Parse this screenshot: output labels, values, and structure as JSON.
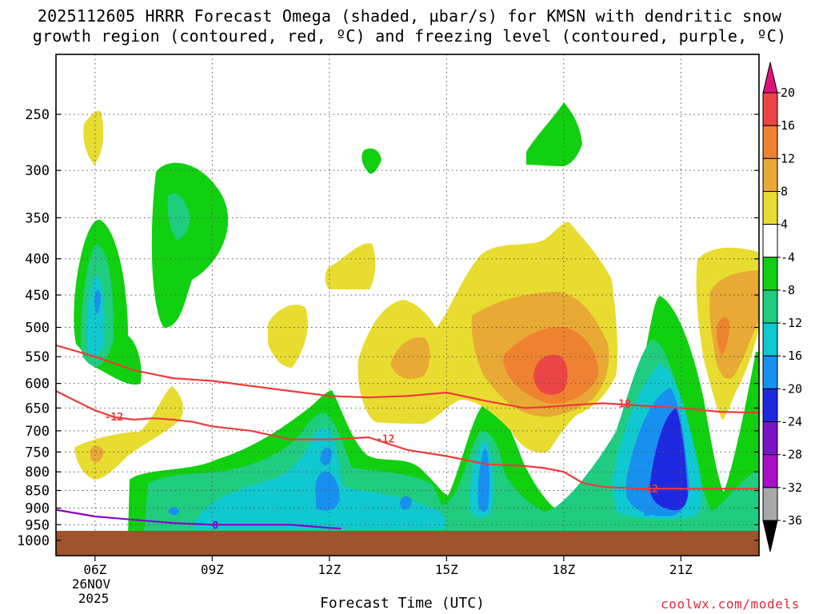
{
  "chart_data": {
    "type": "time-height cross section (shaded omega with contour overlays)",
    "title_line1": "2025112605 HRRR Forecast Omega (shaded, µbar/s) for KMSN with dendritic snow",
    "title_line2": "growth region (contoured, red, ºC) and freezing level (contoured, purple, ºC)",
    "xlabel": "Forecast Time (UTC)",
    "ylabel": "",
    "y_axis": {
      "type": "pressure (mb)",
      "ticks": [
        250,
        300,
        350,
        400,
        450,
        500,
        550,
        600,
        650,
        700,
        750,
        800,
        850,
        900,
        950,
        1000
      ],
      "range": [
        1000,
        195
      ]
    },
    "x_axis": {
      "unit": "hour UTC",
      "range": [
        5.0,
        23.0
      ],
      "ticks": [
        {
          "hour": 6,
          "label": "06Z"
        },
        {
          "hour": 9,
          "label": "09Z"
        },
        {
          "hour": 12,
          "label": "12Z"
        },
        {
          "hour": 15,
          "label": "15Z"
        },
        {
          "hour": 18,
          "label": "18Z"
        },
        {
          "hour": 21,
          "label": "21Z"
        }
      ]
    },
    "date_label_line1": "26NOV",
    "date_label_line2": "2025",
    "surface_pressure_mb": 970,
    "colorbar": {
      "labels": [
        "20",
        "16",
        "12",
        "8",
        "4",
        "-4",
        "-8",
        "-12",
        "-16",
        "-20",
        "-24",
        "-28",
        "-32",
        "-36"
      ],
      "bins": [
        {
          "range": ">20",
          "color": "#e0107a"
        },
        {
          "range": "16 to 20",
          "color": "#ec4545"
        },
        {
          "range": "12 to 16",
          "color": "#ee8230"
        },
        {
          "range": "8 to 12",
          "color": "#e8aa35"
        },
        {
          "range": "4 to 8",
          "color": "#e8dc30"
        },
        {
          "range": "-4 to 4",
          "color": "#ffffff"
        },
        {
          "range": "-8 to -4",
          "color": "#10d010"
        },
        {
          "range": "-12 to -8",
          "color": "#20cc80"
        },
        {
          "range": "-16 to -12",
          "color": "#10c8d0"
        },
        {
          "range": "-20 to -16",
          "color": "#1890f0"
        },
        {
          "range": "-24 to -20",
          "color": "#1e28e0"
        },
        {
          "range": "-28 to -24",
          "color": "#7a14c8"
        },
        {
          "range": "-32 to -28",
          "color": "#a810c8"
        },
        {
          "range": "-36 to -32",
          "color": "#a8a8a8"
        },
        {
          "range": "<-36",
          "color": "#000000"
        }
      ]
    },
    "series": [
      {
        "name": "-12 C isotherm",
        "color": "#ee3a3a",
        "label": "-12",
        "points": [
          [
            5.0,
            615
          ],
          [
            5.5,
            635
          ],
          [
            6.0,
            655
          ],
          [
            6.5,
            670
          ],
          [
            7.0,
            675
          ],
          [
            7.5,
            672
          ],
          [
            8.0,
            675
          ],
          [
            8.5,
            680
          ],
          [
            9.0,
            690
          ],
          [
            10.0,
            700
          ],
          [
            11.0,
            720
          ],
          [
            12.0,
            720
          ],
          [
            13.0,
            715
          ],
          [
            13.5,
            730
          ],
          [
            14.0,
            745
          ],
          [
            15.0,
            760
          ],
          [
            16.0,
            780
          ],
          [
            17.0,
            785
          ],
          [
            17.5,
            790
          ],
          [
            18.0,
            800
          ],
          [
            18.5,
            830
          ],
          [
            19.0,
            840
          ],
          [
            20.0,
            845
          ],
          [
            21.0,
            845
          ],
          [
            22.0,
            845
          ],
          [
            23.0,
            845
          ]
        ]
      },
      {
        "name": "-18 C isotherm",
        "color": "#ee3a3a",
        "label": "-18",
        "points": [
          [
            5.0,
            530
          ],
          [
            6.0,
            550
          ],
          [
            7.0,
            575
          ],
          [
            8.0,
            590
          ],
          [
            9.0,
            595
          ],
          [
            10.0,
            605
          ],
          [
            11.0,
            615
          ],
          [
            12.0,
            625
          ],
          [
            13.0,
            628
          ],
          [
            14.0,
            625
          ],
          [
            15.0,
            618
          ],
          [
            16.0,
            635
          ],
          [
            17.0,
            650
          ],
          [
            17.5,
            648
          ],
          [
            18.0,
            645
          ],
          [
            19.0,
            640
          ],
          [
            20.0,
            645
          ],
          [
            21.0,
            650
          ],
          [
            22.0,
            658
          ],
          [
            23.0,
            660
          ]
        ]
      },
      {
        "name": "0 C freezing level",
        "color": "#8800cc",
        "label": "0",
        "points": [
          [
            5.0,
            905
          ],
          [
            6.0,
            925
          ],
          [
            7.0,
            935
          ],
          [
            8.0,
            945
          ],
          [
            9.0,
            950
          ],
          [
            10.0,
            950
          ],
          [
            11.0,
            950
          ],
          [
            12.0,
            960
          ],
          [
            12.3,
            962
          ]
        ]
      }
    ],
    "omega_features": [
      {
        "name": "ascent maximum",
        "center_hour": 17.8,
        "center_mb": 580,
        "peak_min": 16
      },
      {
        "name": "strong ascent column",
        "center_hour": 20.9,
        "center_mb": 760,
        "peak_min": -20
      },
      {
        "name": "low-level descent band",
        "from_hour": 6.8,
        "to_hour": 23.0,
        "layer_mb": [
          650,
          965
        ],
        "peak_min": -16
      }
    ]
  },
  "xlabel_text": "Forecast Time (UTC)",
  "credit": "coolwx.com/models"
}
